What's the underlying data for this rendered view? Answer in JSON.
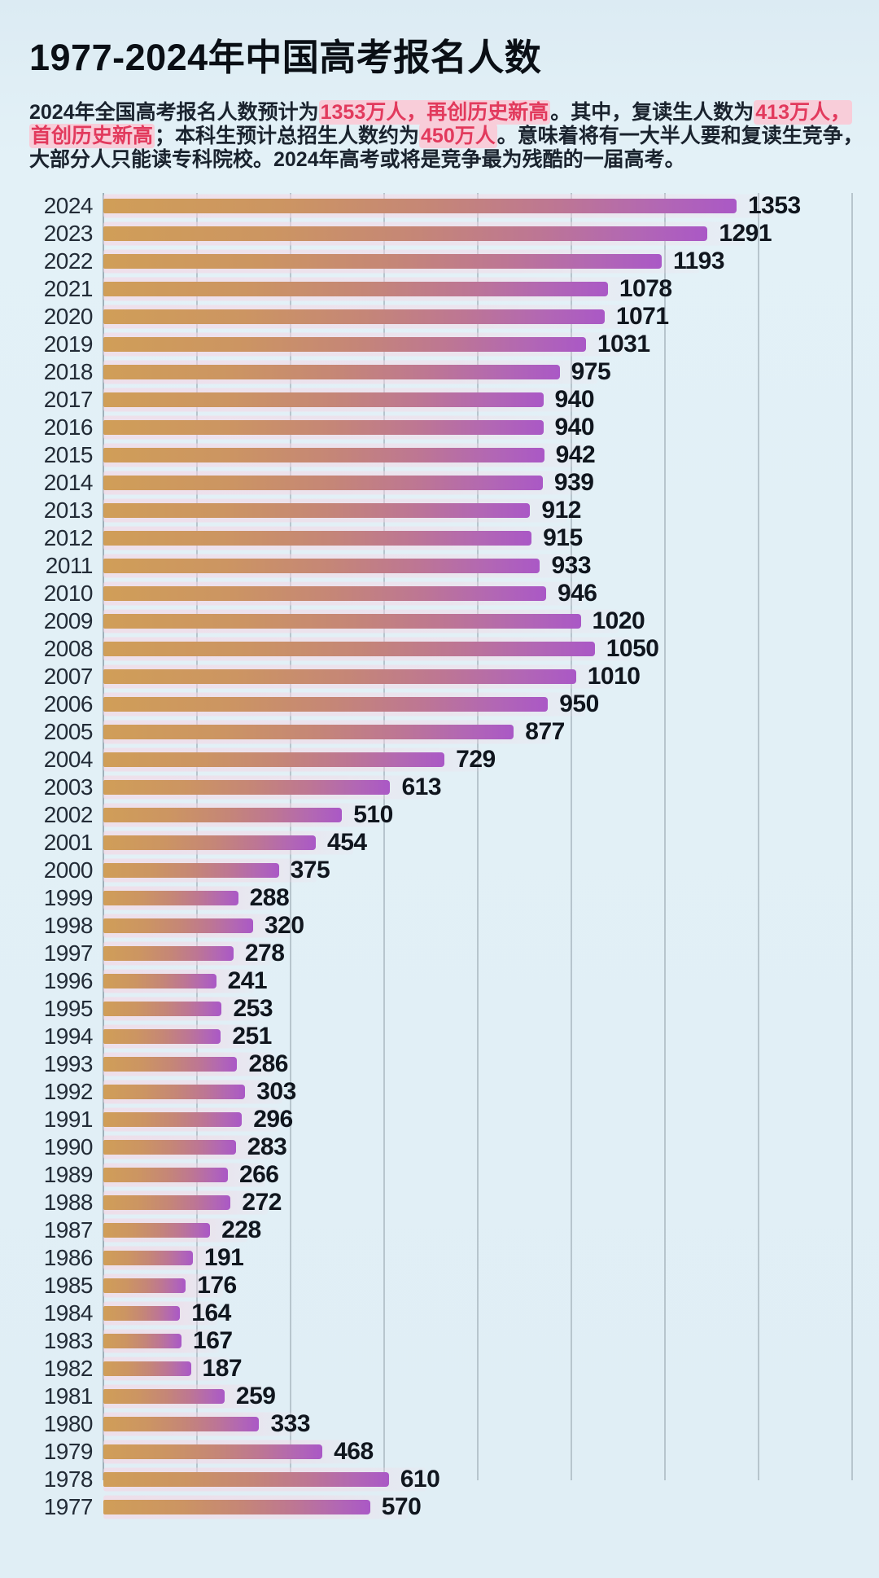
{
  "title": "1977-2024年中国高考报名人数",
  "subtitle": {
    "lines": [
      {
        "segments": [
          {
            "text": "2024年全国高考报名人数预计为",
            "highlight": false
          },
          {
            "text": "1353万人，再创历史新高",
            "highlight": true
          },
          {
            "text": "。其中，复读生人数为",
            "highlight": false
          },
          {
            "text": "413万人，",
            "highlight": true
          }
        ]
      },
      {
        "segments": [
          {
            "text": "首创历史新高",
            "highlight": true
          },
          {
            "text": "；本科生预计总招生人数约为",
            "highlight": false
          },
          {
            "text": "450万人",
            "highlight": true
          },
          {
            "text": "。意味着将有一大半人要和复读生竞争，",
            "highlight": false
          }
        ]
      },
      {
        "segments": [
          {
            "text": "大部分人只能读专科院校。2024年高考或将是竞争最为残酷的一届高考。",
            "highlight": false
          }
        ]
      }
    ]
  },
  "colors": {
    "background": "#e0eef5",
    "title_text": "#0a0f15",
    "body_text": "#1a232e",
    "accent_red": "#e23a5d",
    "highlight_pink": "#f8cdd9",
    "bar_gradient_start": "#d09e58",
    "bar_gradient_end": "#aa58c6",
    "gridline": "#b7c5cd"
  },
  "chart_data": {
    "type": "bar",
    "orientation": "horizontal",
    "title": "1977-2024年中国高考报名人数",
    "unit": "万人",
    "categories": [
      "2024",
      "2023",
      "2022",
      "2021",
      "2020",
      "2019",
      "2018",
      "2017",
      "2016",
      "2015",
      "2014",
      "2013",
      "2012",
      "2011",
      "2010",
      "2009",
      "2008",
      "2007",
      "2006",
      "2005",
      "2004",
      "2003",
      "2002",
      "2001",
      "2000",
      "1999",
      "1998",
      "1997",
      "1996",
      "1995",
      "1994",
      "1993",
      "1992",
      "1991",
      "1990",
      "1989",
      "1988",
      "1987",
      "1986",
      "1985",
      "1984",
      "1983",
      "1982",
      "1981",
      "1980",
      "1979",
      "1978",
      "1977"
    ],
    "values": [
      1353,
      1291,
      1193,
      1078,
      1071,
      1031,
      975,
      940,
      940,
      942,
      939,
      912,
      915,
      933,
      946,
      1020,
      1050,
      1010,
      950,
      877,
      729,
      613,
      510,
      454,
      375,
      288,
      320,
      278,
      241,
      253,
      251,
      286,
      303,
      296,
      283,
      266,
      272,
      228,
      191,
      176,
      164,
      167,
      187,
      259,
      333,
      468,
      610,
      570
    ],
    "value_labels": true,
    "xlim": [
      0,
      1600
    ],
    "gridline_interval": 200,
    "grid": true,
    "legend": false,
    "xlabel": "",
    "ylabel": ""
  }
}
